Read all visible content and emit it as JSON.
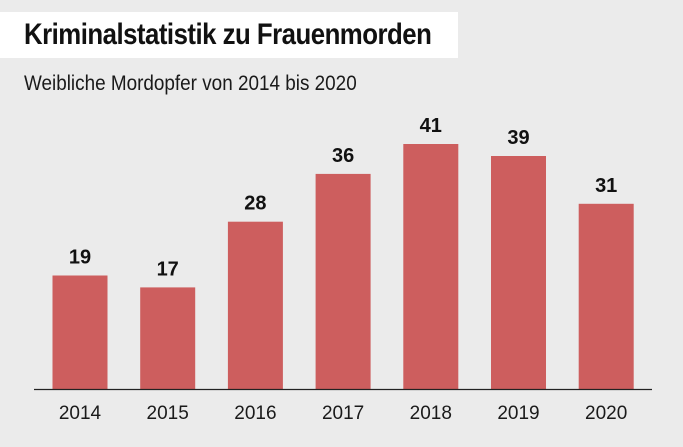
{
  "header": {
    "title": "Kriminalstatistik zu Frauenmorden",
    "subtitle": "Weibliche Mordopfer von 2014 bis 2020"
  },
  "colors": {
    "bar": "#cd5e5e",
    "axis": "#222222",
    "background": "#ebebeb"
  },
  "chart_data": {
    "type": "bar",
    "title": "Kriminalstatistik zu Frauenmorden",
    "subtitle": "Weibliche Mordopfer von 2014 bis 2020",
    "categories": [
      "2014",
      "2015",
      "2016",
      "2017",
      "2018",
      "2019",
      "2020"
    ],
    "values": [
      19,
      17,
      28,
      36,
      41,
      39,
      31
    ],
    "xlabel": "",
    "ylabel": "",
    "ylim": [
      0,
      41
    ],
    "grid": false,
    "legend": "none",
    "data_labels": true
  }
}
